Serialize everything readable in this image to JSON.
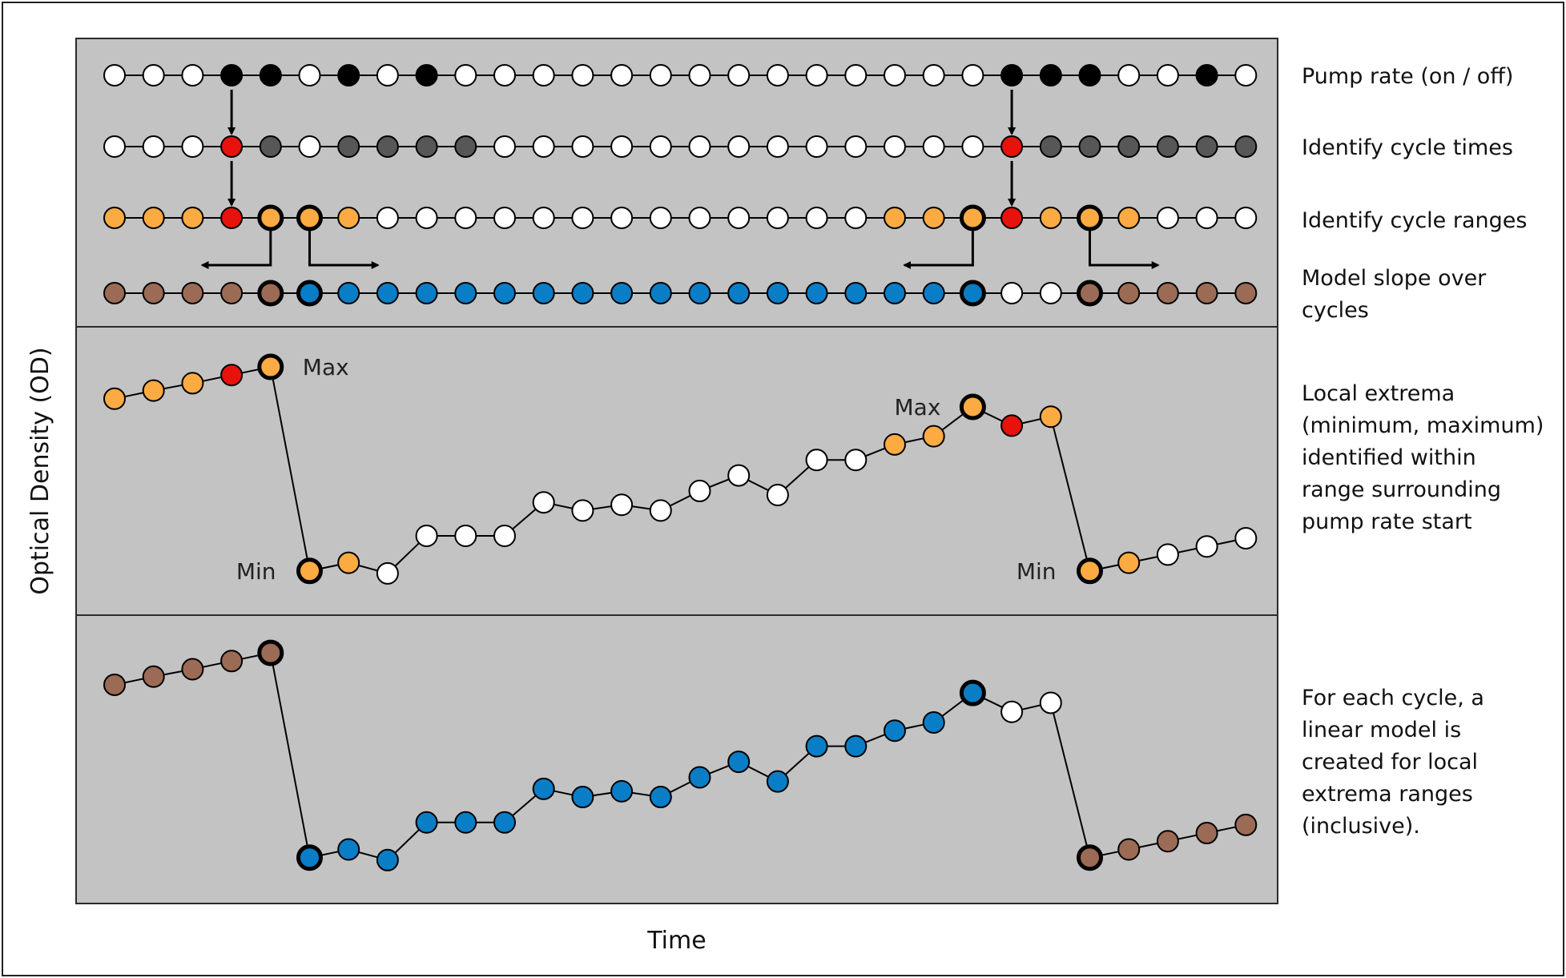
{
  "x_axis_label": "Time",
  "y_axis_label": "Optical Density (OD)",
  "colors": {
    "panel": "#c3c3c3",
    "on": "#000000",
    "off": "#ffffff",
    "cycle_start": "#e8120c",
    "after_start": "#575757",
    "range": "#fbab42",
    "slope": "#0a7dc7",
    "outside": "#9c6b55"
  },
  "steps": [
    {
      "id": "pump",
      "label": "Pump rate (on / off)",
      "states": [
        "off",
        "off",
        "off",
        "on",
        "on",
        "off",
        "on",
        "off",
        "on",
        "off",
        "off",
        "off",
        "off",
        "off",
        "off",
        "off",
        "off",
        "off",
        "off",
        "off",
        "off",
        "off",
        "off",
        "on",
        "on",
        "on",
        "off",
        "off",
        "on",
        "off"
      ],
      "bold": []
    },
    {
      "id": "cycle-times",
      "label": "Identify cycle times",
      "states": [
        "off",
        "off",
        "off",
        "cycle_start",
        "after_start",
        "off",
        "after_start",
        "after_start",
        "after_start",
        "after_start",
        "off",
        "off",
        "off",
        "off",
        "off",
        "off",
        "off",
        "off",
        "off",
        "off",
        "off",
        "off",
        "off",
        "cycle_start",
        "after_start",
        "after_start",
        "after_start",
        "after_start",
        "after_start",
        "after_start"
      ],
      "bold": []
    },
    {
      "id": "cycle-ranges",
      "label": "Identify cycle ranges",
      "states": [
        "range",
        "range",
        "range",
        "cycle_start",
        "range",
        "range",
        "range",
        "off",
        "off",
        "off",
        "off",
        "off",
        "off",
        "off",
        "off",
        "off",
        "off",
        "off",
        "off",
        "off",
        "range",
        "range",
        "range",
        "cycle_start",
        "range",
        "range",
        "range",
        "off",
        "off",
        "off"
      ],
      "bold": [
        4,
        5,
        22,
        25
      ]
    },
    {
      "id": "model-slope",
      "label": "Model slope over cycles",
      "states": [
        "outside",
        "outside",
        "outside",
        "outside",
        "outside",
        "slope",
        "slope",
        "slope",
        "slope",
        "slope",
        "slope",
        "slope",
        "slope",
        "slope",
        "slope",
        "slope",
        "slope",
        "slope",
        "slope",
        "slope",
        "slope",
        "slope",
        "slope",
        "off",
        "off",
        "outside",
        "outside",
        "outside",
        "outside",
        "outside"
      ],
      "bold": [
        4,
        5,
        22,
        25
      ]
    }
  ],
  "od_series": [
    22.3,
    23.3,
    24.2,
    25.2,
    26.2,
    1.2,
    2.2,
    0.9,
    5.5,
    5.5,
    5.5,
    9.6,
    8.6,
    9.3,
    8.6,
    11.0,
    12.9,
    10.5,
    14.8,
    14.8,
    16.7,
    17.7,
    21.3,
    19.0,
    20.1,
    1.2,
    2.2,
    3.2,
    4.2,
    5.2
  ],
  "extrema": [
    {
      "label": "Max",
      "index": 4
    },
    {
      "label": "Min",
      "index": 5
    },
    {
      "label": "Max",
      "index": 22
    },
    {
      "label": "Min",
      "index": 25
    }
  ],
  "panel_extrema": {
    "states": [
      "range",
      "range",
      "range",
      "cycle_start",
      "range",
      "range",
      "range",
      "off",
      "off",
      "off",
      "off",
      "off",
      "off",
      "off",
      "off",
      "off",
      "off",
      "off",
      "off",
      "off",
      "range",
      "range",
      "range",
      "cycle_start",
      "range",
      "range",
      "range",
      "off",
      "off",
      "off"
    ],
    "bold": [
      4,
      5,
      22,
      25
    ],
    "description": "Local extrema (minimum, maximum) identified within range surrounding pump rate start"
  },
  "panel_model": {
    "states": [
      "outside",
      "outside",
      "outside",
      "outside",
      "outside",
      "slope",
      "slope",
      "slope",
      "slope",
      "slope",
      "slope",
      "slope",
      "slope",
      "slope",
      "slope",
      "slope",
      "slope",
      "slope",
      "slope",
      "slope",
      "slope",
      "slope",
      "slope",
      "off",
      "off",
      "outside",
      "outside",
      "outside",
      "outside",
      "outside"
    ],
    "bold": [
      4,
      5,
      22,
      25
    ],
    "description": "For each cycle, a linear model is created for local extrema ranges (inclusive)."
  }
}
